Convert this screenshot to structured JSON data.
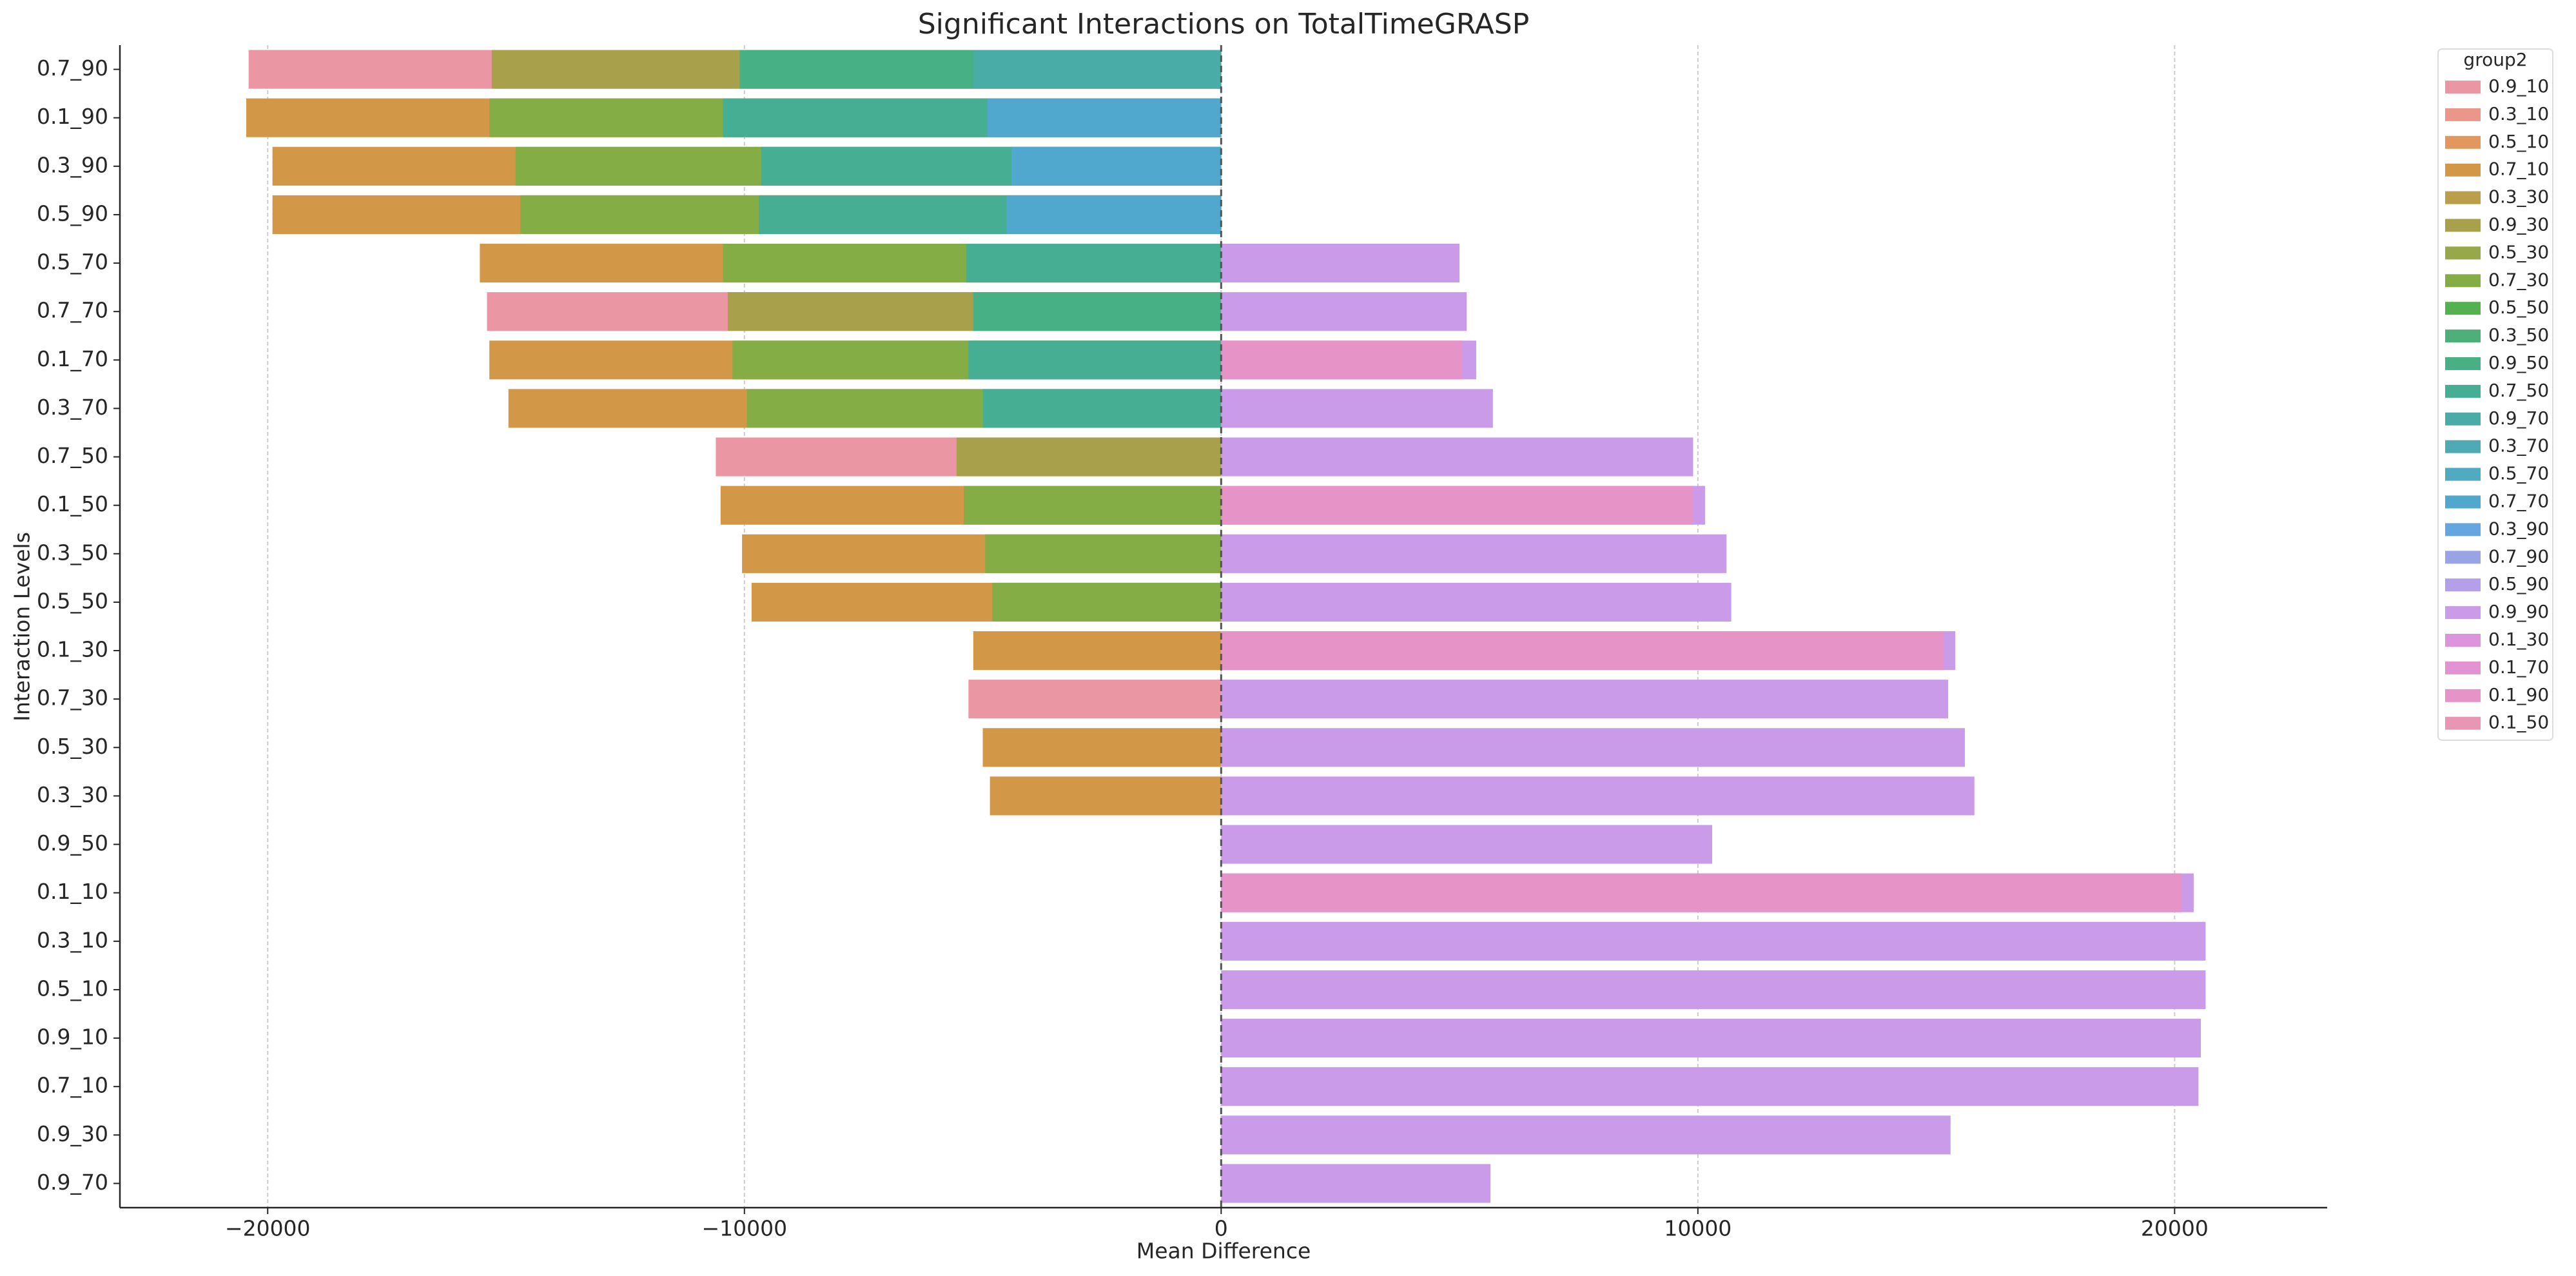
{
  "chart_data": {
    "type": "barh",
    "title": "Significant Interactions on TotalTimeGRASP",
    "xlabel": "Mean Difference",
    "ylabel": "Interaction Levels",
    "legend_title": "group2",
    "legend_position": "outside right",
    "categories": [
      "0.7_90",
      "0.1_90",
      "0.3_90",
      "0.5_90",
      "0.5_70",
      "0.7_70",
      "0.1_70",
      "0.3_70",
      "0.7_50",
      "0.1_50",
      "0.3_50",
      "0.5_50",
      "0.1_30",
      "0.7_30",
      "0.5_30",
      "0.3_30",
      "0.9_50",
      "0.1_10",
      "0.3_10",
      "0.5_10",
      "0.9_10",
      "0.7_10",
      "0.9_30",
      "0.9_70"
    ],
    "xlim": [
      -23100,
      23200
    ],
    "xticks": [
      {
        "value": -20000,
        "label": "−20000"
      },
      {
        "value": -10000,
        "label": "−10000"
      },
      0,
      10000,
      20000
    ],
    "grid": true,
    "series": [
      {
        "name": "0.9_10",
        "color": "#ea96a3",
        "values": [
          -20400,
          null,
          null,
          null,
          null,
          -15400,
          null,
          null,
          -10600,
          null,
          null,
          null,
          null,
          -5300,
          null,
          null,
          null,
          null,
          null,
          null,
          null,
          null,
          null,
          null
        ]
      },
      {
        "name": "0.3_10",
        "color": "#ea9688",
        "values": [
          null,
          null,
          null,
          null,
          null,
          null,
          null,
          null,
          null,
          null,
          null,
          null,
          null,
          null,
          null,
          null,
          null,
          null,
          null,
          null,
          null,
          null,
          null,
          null
        ]
      },
      {
        "name": "0.5_10",
        "color": "#e2975e",
        "values": [
          null,
          null,
          null,
          null,
          null,
          null,
          null,
          null,
          null,
          null,
          null,
          null,
          null,
          null,
          null,
          null,
          null,
          null,
          null,
          null,
          null,
          null,
          null,
          null
        ]
      },
      {
        "name": "0.7_10",
        "color": "#d39748",
        "values": [
          null,
          -20450,
          -19900,
          -19900,
          -15550,
          null,
          -15350,
          -14950,
          null,
          -10500,
          -10050,
          -9850,
          -5200,
          null,
          -5000,
          -4850,
          null,
          null,
          null,
          null,
          null,
          null,
          null,
          null
        ]
      },
      {
        "name": "0.3_30",
        "color": "#bb9e4a",
        "values": [
          null,
          null,
          null,
          null,
          null,
          null,
          null,
          null,
          null,
          null,
          null,
          null,
          null,
          null,
          null,
          null,
          null,
          null,
          null,
          null,
          null,
          null,
          null,
          null
        ]
      },
      {
        "name": "0.9_30",
        "color": "#a8a04a",
        "values": [
          -15300,
          null,
          null,
          null,
          null,
          -10350,
          null,
          null,
          -5550,
          null,
          null,
          null,
          null,
          null,
          null,
          null,
          null,
          null,
          null,
          null,
          null,
          null,
          null,
          null
        ]
      },
      {
        "name": "0.5_30",
        "color": "#96a84a",
        "values": [
          null,
          null,
          null,
          null,
          null,
          null,
          null,
          null,
          null,
          null,
          null,
          null,
          null,
          null,
          null,
          null,
          null,
          null,
          null,
          null,
          null,
          null,
          null,
          null
        ]
      },
      {
        "name": "0.7_30",
        "color": "#84ad45",
        "values": [
          null,
          -15350,
          -14800,
          -14700,
          -10450,
          null,
          -10250,
          -9950,
          null,
          -5400,
          -4950,
          -4800,
          null,
          null,
          null,
          null,
          null,
          null,
          null,
          null,
          null,
          null,
          null,
          null
        ]
      },
      {
        "name": "0.5_50",
        "color": "#55b04e",
        "values": [
          null,
          null,
          null,
          null,
          null,
          null,
          null,
          null,
          null,
          null,
          null,
          null,
          null,
          null,
          null,
          null,
          null,
          null,
          null,
          null,
          null,
          null,
          null,
          null
        ]
      },
      {
        "name": "0.3_50",
        "color": "#4db079",
        "values": [
          null,
          null,
          null,
          null,
          null,
          null,
          null,
          null,
          null,
          null,
          null,
          null,
          null,
          null,
          null,
          null,
          null,
          null,
          null,
          null,
          null,
          null,
          null,
          null
        ]
      },
      {
        "name": "0.9_50",
        "color": "#48b085",
        "values": [
          -10100,
          null,
          null,
          null,
          null,
          -5200,
          null,
          null,
          null,
          null,
          null,
          null,
          null,
          null,
          null,
          null,
          null,
          null,
          null,
          null,
          null,
          null,
          null,
          null
        ]
      },
      {
        "name": "0.7_50",
        "color": "#45ae93",
        "values": [
          null,
          -10450,
          -9650,
          -9700,
          -5350,
          null,
          -5300,
          -5000,
          null,
          null,
          null,
          null,
          null,
          null,
          null,
          null,
          null,
          null,
          null,
          null,
          null,
          null,
          null,
          null
        ]
      },
      {
        "name": "0.9_70",
        "color": "#4aaca6",
        "values": [
          -5200,
          null,
          null,
          null,
          null,
          null,
          null,
          null,
          null,
          null,
          null,
          null,
          null,
          null,
          null,
          null,
          null,
          null,
          null,
          null,
          null,
          null,
          null,
          null
        ]
      },
      {
        "name": "0.3_70",
        "color": "#4eabb5",
        "values": [
          null,
          null,
          null,
          null,
          null,
          null,
          null,
          null,
          null,
          null,
          null,
          null,
          null,
          null,
          null,
          null,
          null,
          null,
          null,
          null,
          null,
          null,
          null,
          null
        ]
      },
      {
        "name": "0.5_70",
        "color": "#50aac2",
        "values": [
          null,
          null,
          null,
          null,
          null,
          null,
          null,
          null,
          null,
          null,
          null,
          null,
          null,
          null,
          null,
          null,
          null,
          null,
          null,
          null,
          null,
          null,
          null,
          null
        ]
      },
      {
        "name": "0.7_70",
        "color": "#50a8cf",
        "values": [
          null,
          -4900,
          -4400,
          -4500,
          null,
          null,
          null,
          null,
          null,
          null,
          null,
          null,
          null,
          null,
          null,
          null,
          null,
          null,
          null,
          null,
          null,
          null,
          null,
          null
        ]
      },
      {
        "name": "0.3_90",
        "color": "#66a6e0",
        "values": [
          null,
          null,
          null,
          null,
          null,
          null,
          null,
          null,
          null,
          null,
          null,
          null,
          null,
          null,
          null,
          null,
          null,
          null,
          null,
          null,
          null,
          null,
          null,
          null
        ]
      },
      {
        "name": "0.7_90",
        "color": "#9aa3e6",
        "values": [
          null,
          null,
          null,
          null,
          null,
          null,
          null,
          null,
          null,
          null,
          null,
          null,
          null,
          null,
          null,
          null,
          null,
          null,
          null,
          null,
          null,
          null,
          null,
          null
        ]
      },
      {
        "name": "0.5_90",
        "color": "#b3a0e8",
        "values": [
          null,
          null,
          null,
          null,
          null,
          null,
          null,
          null,
          null,
          null,
          null,
          null,
          null,
          null,
          null,
          null,
          null,
          null,
          null,
          null,
          null,
          null,
          null,
          null
        ]
      },
      {
        "name": "0.9_90",
        "color": "#c99be8",
        "values": [
          null,
          null,
          null,
          null,
          5000,
          5150,
          5350,
          5700,
          9900,
          10150,
          10600,
          10700,
          15400,
          15250,
          15600,
          15800,
          10300,
          20400,
          20650,
          20650,
          20550,
          20500,
          15300,
          5650
        ]
      },
      {
        "name": "0.1_30",
        "color": "#dc95dd",
        "values": [
          null,
          null,
          null,
          null,
          null,
          null,
          null,
          null,
          null,
          null,
          null,
          null,
          null,
          null,
          null,
          null,
          null,
          null,
          null,
          null,
          null,
          null,
          null,
          null
        ]
      },
      {
        "name": "0.1_70",
        "color": "#e493d2",
        "values": [
          null,
          null,
          null,
          null,
          null,
          null,
          null,
          null,
          null,
          null,
          null,
          null,
          null,
          null,
          null,
          null,
          null,
          null,
          null,
          null,
          null,
          null,
          null,
          null
        ]
      },
      {
        "name": "0.1_90",
        "color": "#e693c8",
        "values": [
          null,
          null,
          null,
          null,
          null,
          null,
          5050,
          null,
          null,
          9900,
          null,
          null,
          15150,
          null,
          null,
          null,
          null,
          20150,
          null,
          null,
          null,
          null,
          null,
          null
        ]
      },
      {
        "name": "0.1_50",
        "color": "#e995b4",
        "values": [
          null,
          null,
          null,
          null,
          null,
          null,
          null,
          null,
          null,
          null,
          null,
          null,
          null,
          null,
          null,
          null,
          null,
          null,
          null,
          null,
          null,
          null,
          null,
          null
        ]
      }
    ]
  }
}
